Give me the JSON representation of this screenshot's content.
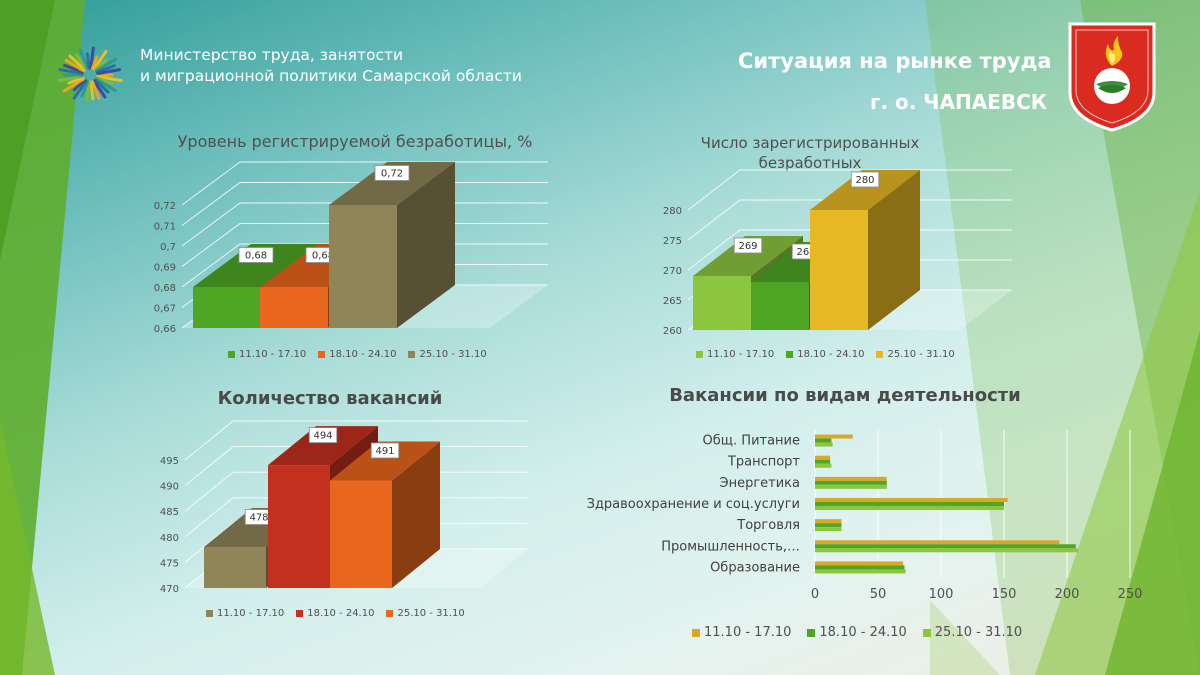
{
  "header": {
    "ministry_line1": "Министерство труда, занятости",
    "ministry_line2": "и миграционной политики Самарской области",
    "title": "Ситуация на рынке труда",
    "subtitle": "г. о. ЧАПАЕВСК"
  },
  "colors": {
    "green": "#4ea624",
    "orange": "#e8661e",
    "olive": "#8f8558",
    "light_green": "#8cc63f",
    "yellow": "#e6b824",
    "red": "#c3301e",
    "gold": "#d9a72a"
  },
  "chart_data": [
    {
      "id": "unemployment-rate",
      "type": "bar",
      "title": "Уровень регистрируемой  безработицы, %",
      "categories": [
        "11.10 - 17.10",
        "18.10 - 24.10",
        "25.10 - 31.10"
      ],
      "values": [
        0.68,
        0.68,
        0.72
      ],
      "value_labels": [
        "0,68",
        "0,68",
        "0,72"
      ],
      "yticks": [
        "0,66",
        "0,67",
        "0,68",
        "0,69",
        "0,7",
        "0,71",
        "0,72"
      ],
      "ylim": [
        0.66,
        0.72
      ],
      "legend_position": "bottom",
      "grid": true
    },
    {
      "id": "registered-unemployed",
      "type": "bar",
      "title": "Число зарегистрированных безработных",
      "categories": [
        "11.10 - 17.10",
        "18.10 - 24.10",
        "25.10 - 31.10"
      ],
      "values": [
        269,
        268,
        280
      ],
      "value_labels": [
        "269",
        "268",
        "280"
      ],
      "yticks": [
        "260",
        "265",
        "270",
        "275",
        "280"
      ],
      "ylim": [
        260,
        280
      ],
      "legend_position": "bottom",
      "grid": true
    },
    {
      "id": "vacancies-count",
      "type": "bar",
      "title": "Количество вакансий",
      "categories": [
        "11.10 - 17.10",
        "18.10 - 24.10",
        "25.10 - 31.10"
      ],
      "values": [
        478,
        494,
        491
      ],
      "value_labels": [
        "478",
        "494",
        "491"
      ],
      "yticks": [
        "470",
        "475",
        "480",
        "485",
        "490",
        "495"
      ],
      "ylim": [
        470,
        495
      ],
      "legend_position": "bottom",
      "grid": true
    },
    {
      "id": "vacancies-by-activity",
      "type": "bar",
      "orientation": "horizontal",
      "title": "Вакансии по видам деятельности",
      "categories": [
        "Общ. Питание",
        "Транспорт",
        "Энергетика",
        "Здравоохранение и соц.услуги",
        "Торговля",
        "Промышленность,…",
        "Образование"
      ],
      "series": [
        {
          "name": "11.10 - 17.10",
          "values": [
            30,
            12,
            57,
            153,
            21,
            194,
            70
          ]
        },
        {
          "name": "18.10 - 24.10",
          "values": [
            13,
            12,
            57,
            150,
            21,
            207,
            71
          ]
        },
        {
          "name": "25.10 - 31.10",
          "values": [
            14,
            13,
            57,
            150,
            21,
            209,
            72
          ]
        }
      ],
      "xticks": [
        "0",
        "50",
        "100",
        "150",
        "200",
        "250"
      ],
      "xlim": [
        0,
        250
      ],
      "legend_position": "bottom",
      "grid": true
    }
  ]
}
